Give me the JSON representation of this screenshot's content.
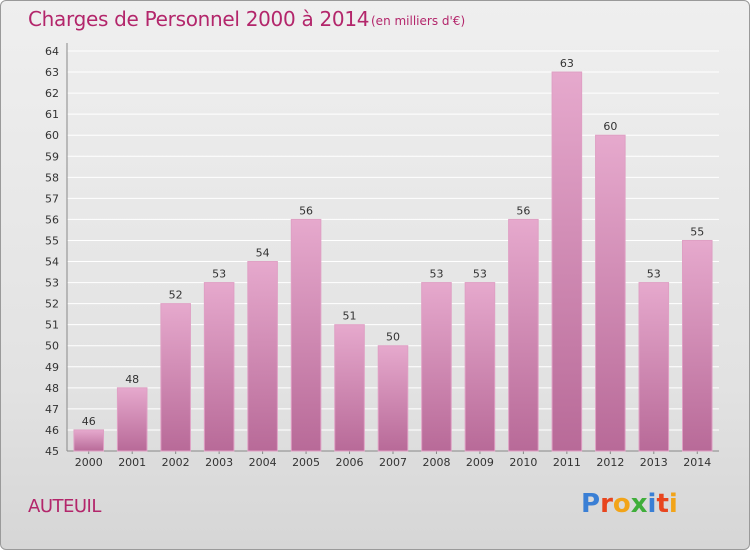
{
  "header": {
    "title": "Charges de Personnel 2000 à 2014",
    "subtitle": "(en milliers d'€)"
  },
  "footer": {
    "commune": "AUTEUIL",
    "logo_letters": [
      "P",
      "r",
      "o",
      "x",
      "i",
      "t",
      "i"
    ],
    "logo_colors": [
      "#3a7fd5",
      "#e8451e",
      "#f2a419",
      "#3fae3a",
      "#3a7fd5",
      "#e8451e",
      "#f2a419"
    ]
  },
  "colors": {
    "bar_top": "#e6a9cd",
    "bar_bottom": "#b86a98",
    "grid": "#ffffff"
  },
  "chart_data": {
    "type": "bar",
    "categories": [
      "2000",
      "2001",
      "2002",
      "2003",
      "2004",
      "2005",
      "2006",
      "2007",
      "2008",
      "2009",
      "2010",
      "2011",
      "2012",
      "2013",
      "2014"
    ],
    "values": [
      46,
      48,
      52,
      53,
      54,
      56,
      51,
      50,
      53,
      53,
      56,
      63,
      60,
      53,
      55
    ],
    "ylim": [
      45,
      64
    ],
    "yticks": [
      45,
      46,
      47,
      48,
      49,
      50,
      51,
      52,
      53,
      54,
      55,
      56,
      57,
      58,
      59,
      60,
      61,
      62,
      63,
      64
    ],
    "grid": true,
    "xlabel": "",
    "ylabel": ""
  }
}
